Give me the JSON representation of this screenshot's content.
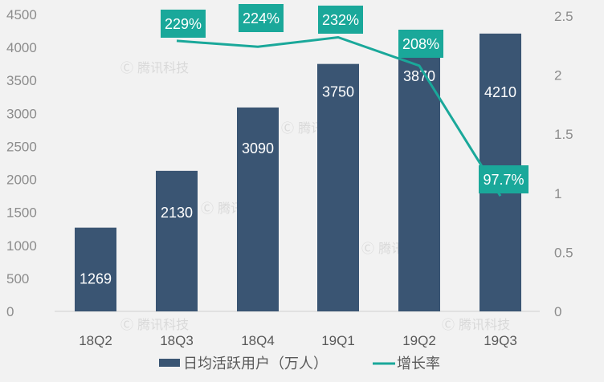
{
  "chart_data": {
    "type": "bar",
    "categories": [
      "18Q2",
      "18Q3",
      "18Q4",
      "19Q1",
      "19Q2",
      "19Q3"
    ],
    "series": [
      {
        "name": "日均活跃用户（万人）",
        "type": "bar",
        "axis": "left",
        "values": [
          1269,
          2130,
          3090,
          3750,
          3870,
          4210
        ],
        "labels": [
          "1269",
          "2130",
          "3090",
          "3750",
          "3870",
          "4210"
        ],
        "color": "#3a5573"
      },
      {
        "name": "增长率",
        "type": "line",
        "axis": "right",
        "values": [
          null,
          2.29,
          2.24,
          2.32,
          2.08,
          0.977
        ],
        "labels": [
          "",
          "229%",
          "224%",
          "232%",
          "208%",
          "97.7%"
        ],
        "color": "#1aa89a"
      }
    ],
    "y_left": {
      "range": [
        0,
        4500
      ],
      "ticks": [
        "0",
        "500",
        "1000",
        "1500",
        "2000",
        "2500",
        "3000",
        "3500",
        "4000",
        "4500"
      ]
    },
    "y_right": {
      "range": [
        0,
        2.5
      ],
      "ticks": [
        "0",
        "0.5",
        "1",
        "1.5",
        "2",
        "2.5"
      ]
    },
    "grid": false,
    "legend": "bottom",
    "watermark": "腾讯科技"
  }
}
